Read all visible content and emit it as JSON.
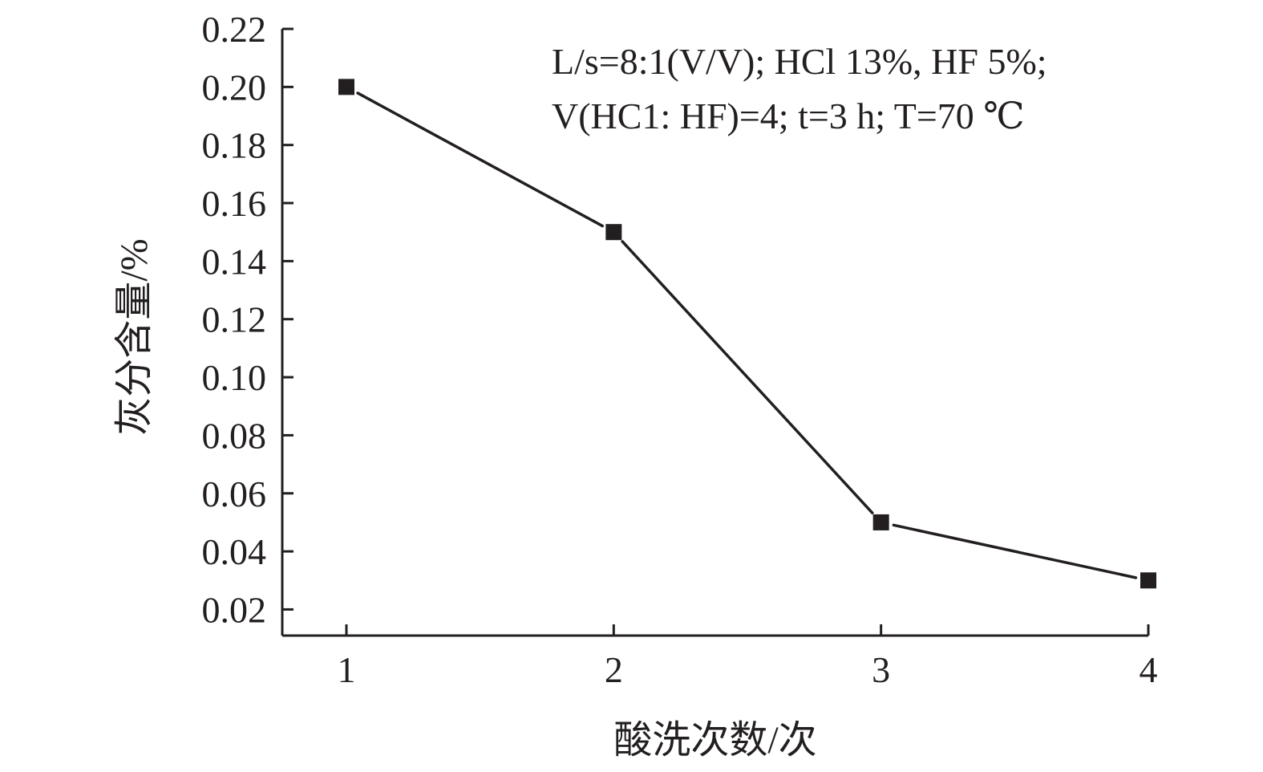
{
  "chart_data": {
    "type": "line",
    "title": "",
    "xlabel": "酸洗次数/次",
    "ylabel": "灰分含量/%",
    "x": [
      1,
      2,
      3,
      4
    ],
    "series": [
      {
        "values": [
          0.2,
          0.15,
          0.05,
          0.03
        ],
        "marker": "square",
        "color": "#231f20"
      }
    ],
    "xticks": [
      "1",
      "2",
      "3",
      "4"
    ],
    "yticks": [
      "0.02",
      "0.04",
      "0.06",
      "0.08",
      "0.10",
      "0.12",
      "0.14",
      "0.16",
      "0.18",
      "0.20",
      "0.22"
    ],
    "xlim": [
      0.76,
      4
    ],
    "ylim": [
      0.011,
      0.22
    ],
    "grid": false,
    "annotations": [
      "L/s=8:1(V/V); HCl 13%, HF 5%;",
      "V(HC1: HF)=4; t=3 h; T=70 ℃"
    ],
    "colors": {
      "axis": "#231f20",
      "line": "#231f20",
      "background": "#ffffff"
    }
  }
}
